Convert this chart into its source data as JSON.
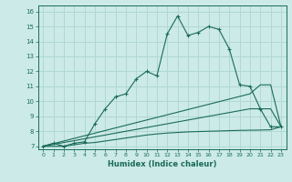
{
  "title": "",
  "xlabel": "Humidex (Indice chaleur)",
  "ylabel": "",
  "bg_color": "#cceae7",
  "grid_color": "#b0d8d4",
  "line_color": "#1a6b5a",
  "xlim": [
    -0.5,
    23.5
  ],
  "ylim": [
    6.8,
    16.4
  ],
  "xticks": [
    0,
    1,
    2,
    3,
    4,
    5,
    6,
    7,
    8,
    9,
    10,
    11,
    12,
    13,
    14,
    15,
    16,
    17,
    18,
    19,
    20,
    21,
    22,
    23
  ],
  "yticks": [
    7,
    8,
    9,
    10,
    11,
    12,
    13,
    14,
    15,
    16
  ],
  "line1_x": [
    0,
    1,
    2,
    3,
    4,
    5,
    6,
    7,
    8,
    9,
    10,
    11,
    12,
    13,
    14,
    15,
    16,
    17,
    18,
    19,
    20,
    21,
    22,
    23
  ],
  "line1_y": [
    7.0,
    7.2,
    7.0,
    7.2,
    7.3,
    8.5,
    9.5,
    10.3,
    10.5,
    11.5,
    12.0,
    11.7,
    14.5,
    15.7,
    14.4,
    14.6,
    15.0,
    14.8,
    13.5,
    11.1,
    11.0,
    9.5,
    8.3,
    8.3
  ],
  "line2_x": [
    0,
    20,
    21,
    22,
    23
  ],
  "line2_y": [
    7.0,
    10.5,
    11.1,
    11.1,
    8.3
  ],
  "line3_x": [
    0,
    20,
    22,
    23
  ],
  "line3_y": [
    7.0,
    9.5,
    9.5,
    8.3
  ],
  "line4_x": [
    0,
    1,
    2,
    3,
    4,
    5,
    6,
    7,
    8,
    9,
    10,
    11,
    12,
    13,
    14,
    15,
    16,
    17,
    18,
    19,
    20,
    21,
    22,
    23
  ],
  "line4_y": [
    7.0,
    7.0,
    7.0,
    7.1,
    7.2,
    7.25,
    7.35,
    7.45,
    7.55,
    7.65,
    7.75,
    7.82,
    7.88,
    7.92,
    7.96,
    7.98,
    8.0,
    8.02,
    8.04,
    8.06,
    8.07,
    8.08,
    8.1,
    8.3
  ]
}
